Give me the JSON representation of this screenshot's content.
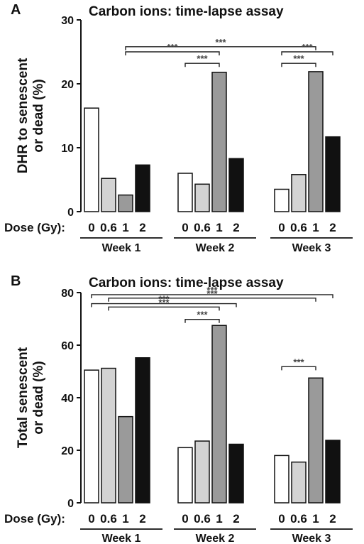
{
  "chart_data": [
    {
      "type": "bar",
      "panel_label": "A",
      "title": "Carbon ions: time-lapse assay",
      "ylabel": [
        "DHR to senescent",
        "or dead (%)"
      ],
      "ylim": [
        0,
        30
      ],
      "yticks": [
        0,
        10,
        20,
        30
      ],
      "dose_label": "Dose (Gy):",
      "dose_categories": [
        "0",
        "0.6",
        "1",
        "2"
      ],
      "groups": [
        "Week 1",
        "Week 2",
        "Week 3"
      ],
      "series": [
        {
          "dose": "0",
          "color": "#ffffff",
          "values": [
            16.2,
            6.0,
            3.5
          ]
        },
        {
          "dose": "0.6",
          "color": "#d3d3d3",
          "values": [
            5.2,
            4.3,
            5.8
          ]
        },
        {
          "dose": "1",
          "color": "#9a9a9a",
          "values": [
            2.6,
            21.8,
            21.9
          ]
        },
        {
          "dose": "2",
          "color": "#111111",
          "values": [
            7.3,
            8.3,
            11.7
          ]
        }
      ],
      "significance": [
        {
          "label": "***",
          "from": [
            0,
            2
          ],
          "to": [
            2,
            2
          ],
          "y": 25.8
        },
        {
          "label": "***",
          "from": [
            0,
            2
          ],
          "to": [
            1,
            2
          ],
          "y": 25.0
        },
        {
          "label": "***",
          "from": [
            1,
            0
          ],
          "to": [
            1,
            2
          ],
          "y": 23.2
        },
        {
          "label": "***",
          "from": [
            2,
            0
          ],
          "to": [
            2,
            3
          ],
          "y": 25.0
        },
        {
          "label": "***",
          "from": [
            2,
            0
          ],
          "to": [
            2,
            2
          ],
          "y": 23.2
        }
      ]
    },
    {
      "type": "bar",
      "panel_label": "B",
      "title": "Carbon ions: time-lapse assay",
      "ylabel": [
        "Total senescent",
        "or dead (%)"
      ],
      "ylim": [
        0,
        80
      ],
      "yticks": [
        0,
        20,
        40,
        60,
        80
      ],
      "dose_label": "Dose (Gy):",
      "dose_categories": [
        "0",
        "0.6",
        "1",
        "2"
      ],
      "groups": [
        "Week 1",
        "Week 2",
        "Week 3"
      ],
      "series": [
        {
          "dose": "0",
          "color": "#ffffff",
          "values": [
            50.5,
            21.0,
            18.0
          ]
        },
        {
          "dose": "0.6",
          "color": "#d3d3d3",
          "values": [
            51.2,
            23.5,
            15.5
          ]
        },
        {
          "dose": "1",
          "color": "#9a9a9a",
          "values": [
            32.8,
            67.5,
            47.5
          ]
        },
        {
          "dose": "2",
          "color": "#111111",
          "values": [
            55.2,
            22.3,
            23.8
          ]
        }
      ],
      "significance": [
        {
          "label": "***",
          "from": [
            0,
            0
          ],
          "to": [
            2,
            3
          ],
          "y": 79.2
        },
        {
          "label": "***",
          "from": [
            0,
            1
          ],
          "to": [
            2,
            2
          ],
          "y": 77.9
        },
        {
          "label": "***",
          "from": [
            0,
            0
          ],
          "to": [
            1,
            3
          ],
          "y": 75.8
        },
        {
          "label": "***",
          "from": [
            0,
            1
          ],
          "to": [
            1,
            2
          ],
          "y": 74.5
        },
        {
          "label": "***",
          "from": [
            1,
            0
          ],
          "to": [
            1,
            2
          ],
          "y": 69.8
        },
        {
          "label": "***",
          "from": [
            2,
            0
          ],
          "to": [
            2,
            2
          ],
          "y": 51.8
        }
      ]
    }
  ]
}
